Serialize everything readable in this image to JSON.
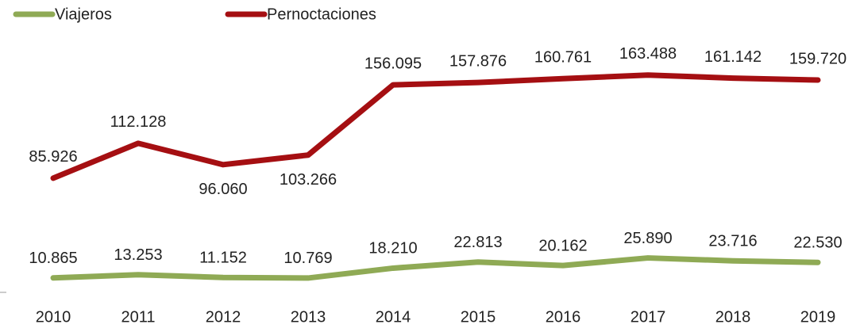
{
  "chart_data": {
    "type": "line",
    "categories": [
      "2010",
      "2011",
      "2012",
      "2013",
      "2014",
      "2015",
      "2016",
      "2017",
      "2018",
      "2019"
    ],
    "series": [
      {
        "name": "Viajeros",
        "color": "#8faa55",
        "values": [
          10865,
          13253,
          11152,
          10769,
          18210,
          22813,
          20162,
          25890,
          23716,
          22530
        ],
        "value_labels": [
          "10.865",
          "13.253",
          "11.152",
          "10.769",
          "18.210",
          "22.813",
          "20.162",
          "25.890",
          "23.716",
          "22.530"
        ]
      },
      {
        "name": "Pernoctaciones",
        "color": "#a50f12",
        "values": [
          85926,
          112128,
          96060,
          103266,
          156095,
          157876,
          160761,
          163488,
          161142,
          159720
        ],
        "value_labels": [
          "85.926",
          "112.128",
          "96.060",
          "103.266",
          "156.095",
          "157.876",
          "160.761",
          "163.488",
          "161.142",
          "159.720"
        ]
      }
    ],
    "ylim": [
      0,
      180000
    ],
    "legend": "top-left"
  }
}
